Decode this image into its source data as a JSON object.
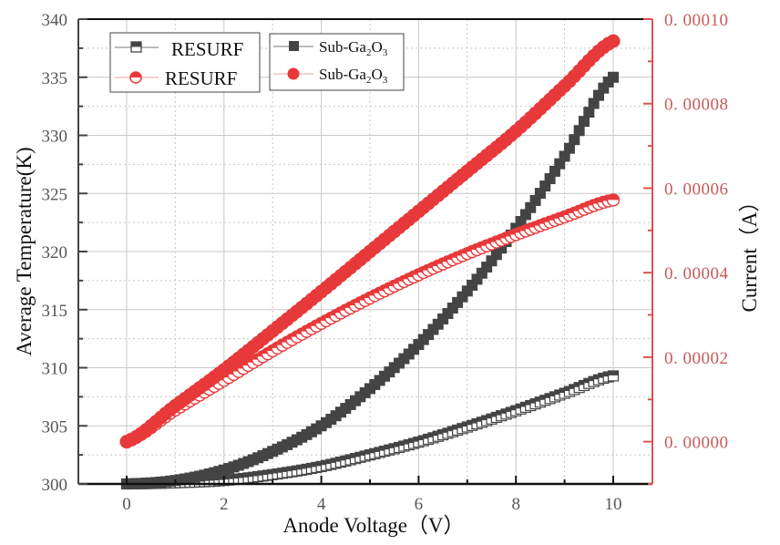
{
  "chart_data": {
    "type": "scatter",
    "xlabel": "Anode Voltage（V）",
    "ylabel": "Average Temperature(K)",
    "ylabel_right": "Current（A）",
    "xlim": [
      -0.9,
      11.0
    ],
    "ylim": [
      300,
      340
    ],
    "ylim_right": [
      -1e-05,
      0.0001
    ],
    "grid": true,
    "x_ticks": [
      0,
      2,
      4,
      6,
      8,
      10
    ],
    "x_tick_labels": [
      "0",
      "2",
      "4",
      "6",
      "8",
      "10"
    ],
    "y_ticks": [
      300,
      305,
      310,
      315,
      320,
      325,
      330,
      335,
      340
    ],
    "y_tick_labels": [
      "300",
      "305",
      "310",
      "315",
      "320",
      "325",
      "330",
      "335",
      "340"
    ],
    "y_right_ticks": [
      0,
      2e-05,
      4e-05,
      6e-05,
      8e-05,
      0.0001
    ],
    "y_right_tick_labels": [
      "0. 00000",
      "0. 00002",
      "0. 00004",
      "0. 00006",
      "0. 00008",
      "0. 00010"
    ],
    "legend_placement": "top-left",
    "legend": [
      {
        "label": "RESURF",
        "series": "resurf_temp"
      },
      {
        "label": "RESURF",
        "series": "resurf_current"
      },
      {
        "label_main": "Sub-Ga",
        "sub1": "2",
        "mid": "O",
        "sub2": "3",
        "series": "sub_temp"
      },
      {
        "label_main": "Sub-Ga",
        "sub1": "2",
        "mid": "O",
        "sub2": "3",
        "series": "sub_current"
      }
    ],
    "x": [
      0,
      1,
      2,
      3,
      4,
      5,
      6,
      7,
      8,
      9,
      10
    ],
    "series": [
      {
        "id": "resurf_temp",
        "name": "RESURF",
        "axis": "left",
        "marker": "half-filled-square",
        "color": "#444444",
        "values": [
          300.0,
          300.1,
          300.3,
          300.8,
          301.5,
          302.5,
          303.6,
          304.9,
          306.3,
          307.8,
          309.3
        ]
      },
      {
        "id": "sub_temp",
        "name": "Sub-Ga2O3",
        "axis": "left",
        "marker": "filled-square",
        "color": "#444444",
        "values": [
          300.0,
          300.3,
          301.2,
          302.8,
          305.0,
          308.2,
          312.0,
          316.6,
          322.0,
          328.2,
          335.0
        ]
      },
      {
        "id": "resurf_current",
        "name": "RESURF",
        "axis": "right",
        "marker": "half-filled-circle",
        "color": "#e8393a",
        "values": [
          0.0,
          7.5e-06,
          1.45e-05,
          2.15e-05,
          2.8e-05,
          3.4e-05,
          3.95e-05,
          4.45e-05,
          4.9e-05,
          5.32e-05,
          5.72e-05
        ]
      },
      {
        "id": "sub_current",
        "name": "Sub-Ga2O3",
        "axis": "right",
        "marker": "filled-circle",
        "color": "#e8393a",
        "values": [
          0.0,
          8.5e-06,
          1.7e-05,
          2.62e-05,
          3.55e-05,
          4.5e-05,
          5.45e-05,
          6.4e-05,
          7.35e-05,
          8.42e-05,
          9.48e-05
        ]
      }
    ]
  },
  "colors": {
    "left_axis": "#444444",
    "right_axis": "#d9534f",
    "right_tick_text": "#c85a5a",
    "red_series": "#e8393a",
    "black_series": "#444444",
    "grid": "#c8c8c8"
  }
}
